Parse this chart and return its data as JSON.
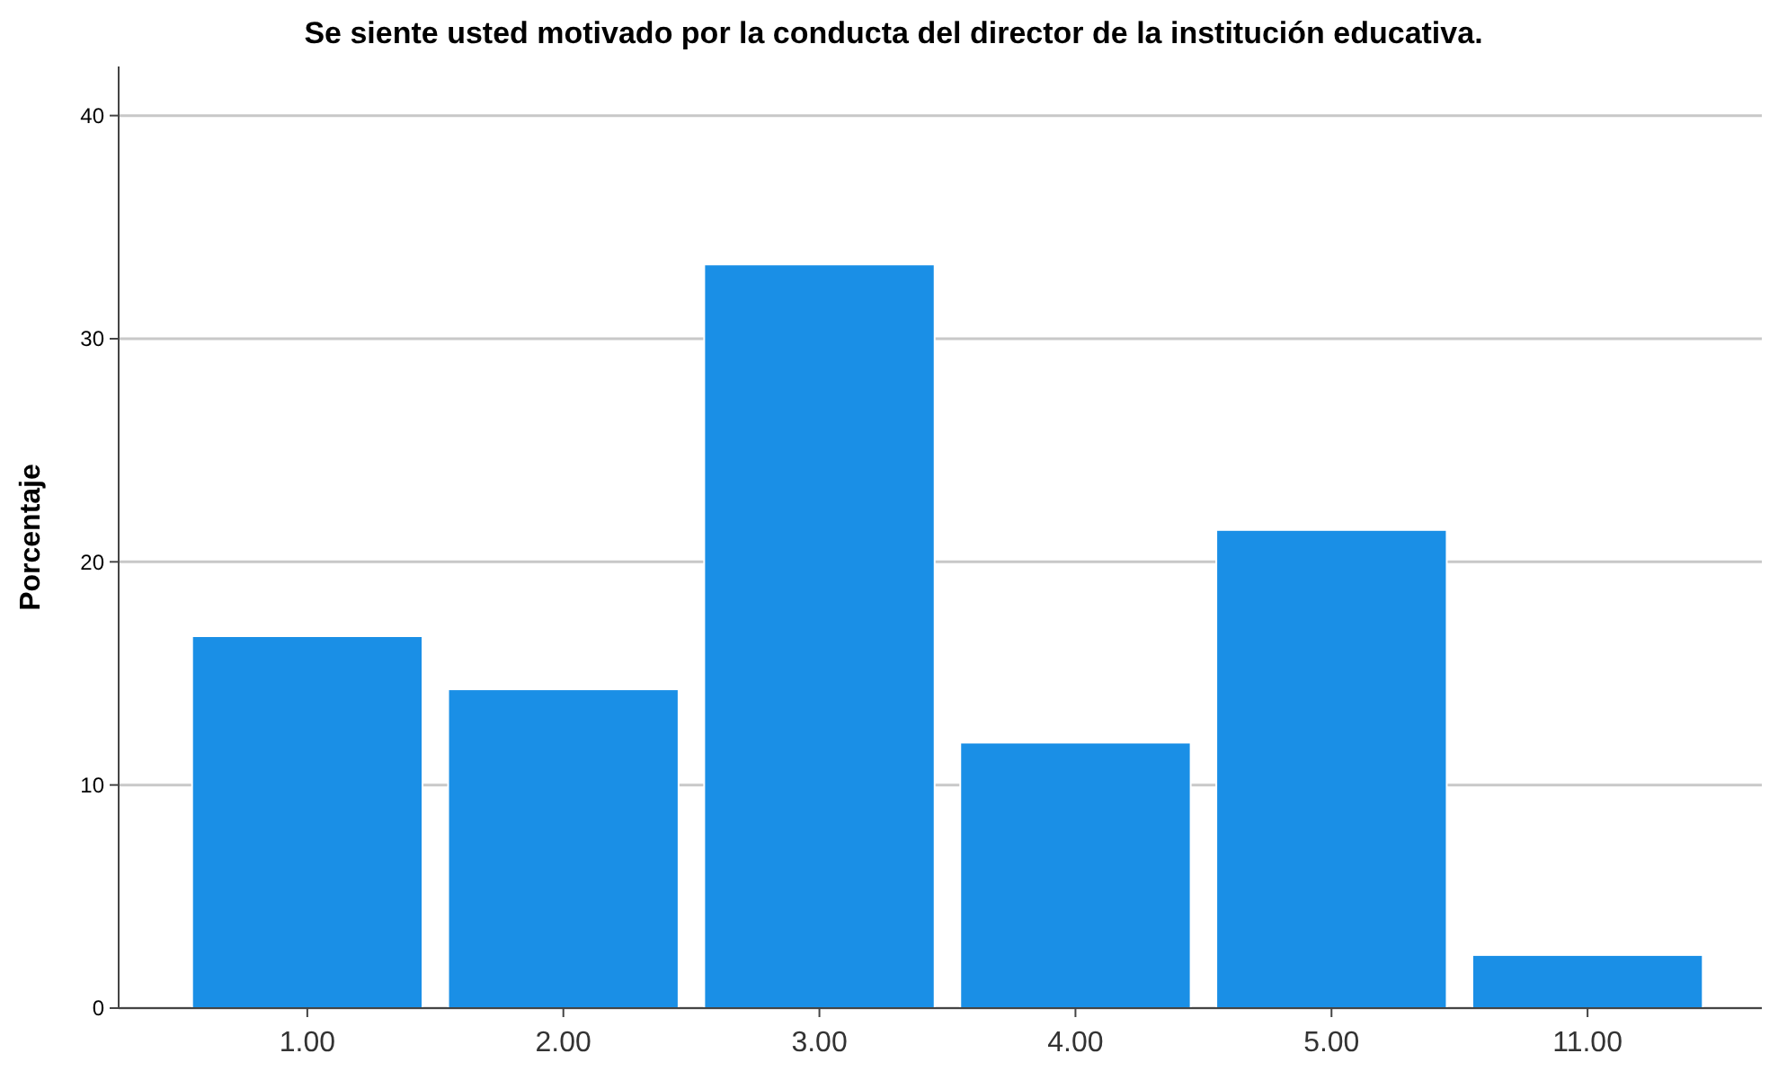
{
  "chart_data": {
    "type": "bar",
    "title": "Se siente usted motivado por la conducta del director de la institución educativa.",
    "ylabel": "Porcentaje",
    "categories": [
      "1.00",
      "2.00",
      "3.00",
      "4.00",
      "5.00",
      "11.00"
    ],
    "values": [
      16.67,
      14.29,
      33.33,
      11.9,
      21.43,
      2.38
    ],
    "color": "#1a8fe6",
    "ylim": [
      0,
      42.2
    ],
    "yticks": [
      0,
      10,
      20,
      30,
      40
    ],
    "grid": "y"
  }
}
